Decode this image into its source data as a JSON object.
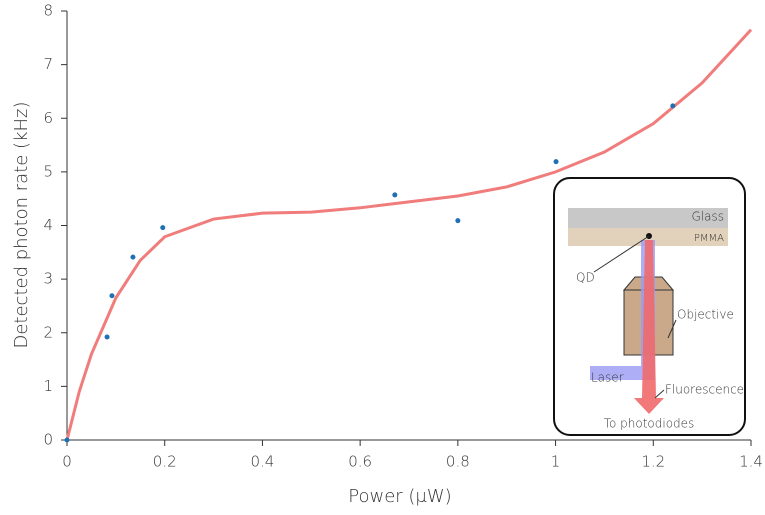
{
  "chart_data": {
    "type": "scatter",
    "xlabel": "Power (μW)",
    "ylabel": "Detected photon rate (kHz)",
    "xlim": [
      0,
      1.4
    ],
    "ylim": [
      0,
      8
    ],
    "xticks": [
      0,
      0.2,
      0.4,
      0.6,
      0.8,
      1,
      1.2,
      1.4
    ],
    "yticks": [
      0,
      1,
      2,
      3,
      4,
      5,
      6,
      7,
      8
    ],
    "series": [
      {
        "type": "scatter",
        "color": "#1f6fb4",
        "x": [
          0,
          0.082,
          0.092,
          0.135,
          0.196,
          0.671,
          0.8,
          1.001,
          1.24
        ],
        "values": [
          0,
          1.92,
          2.69,
          3.41,
          3.96,
          4.57,
          4.09,
          5.19,
          6.23
        ]
      },
      {
        "type": "line",
        "color": "#f07c7c",
        "x": [
          0,
          0.025,
          0.05,
          0.1,
          0.15,
          0.2,
          0.3,
          0.4,
          0.5,
          0.6,
          0.7,
          0.8,
          0.9,
          1.0,
          1.1,
          1.2,
          1.3,
          1.4
        ],
        "values": [
          0,
          0.9,
          1.6,
          2.65,
          3.35,
          3.79,
          4.12,
          4.23,
          4.25,
          4.33,
          4.44,
          4.55,
          4.72,
          5.0,
          5.37,
          5.9,
          6.66,
          7.65
        ]
      }
    ]
  },
  "inset": {
    "glass": "Glass",
    "pmma": "PMMA",
    "qd": "QD",
    "objective": "Objective",
    "laser": "Laser",
    "fluorescence": "Fluorescence",
    "detector": "To photodiodes"
  }
}
